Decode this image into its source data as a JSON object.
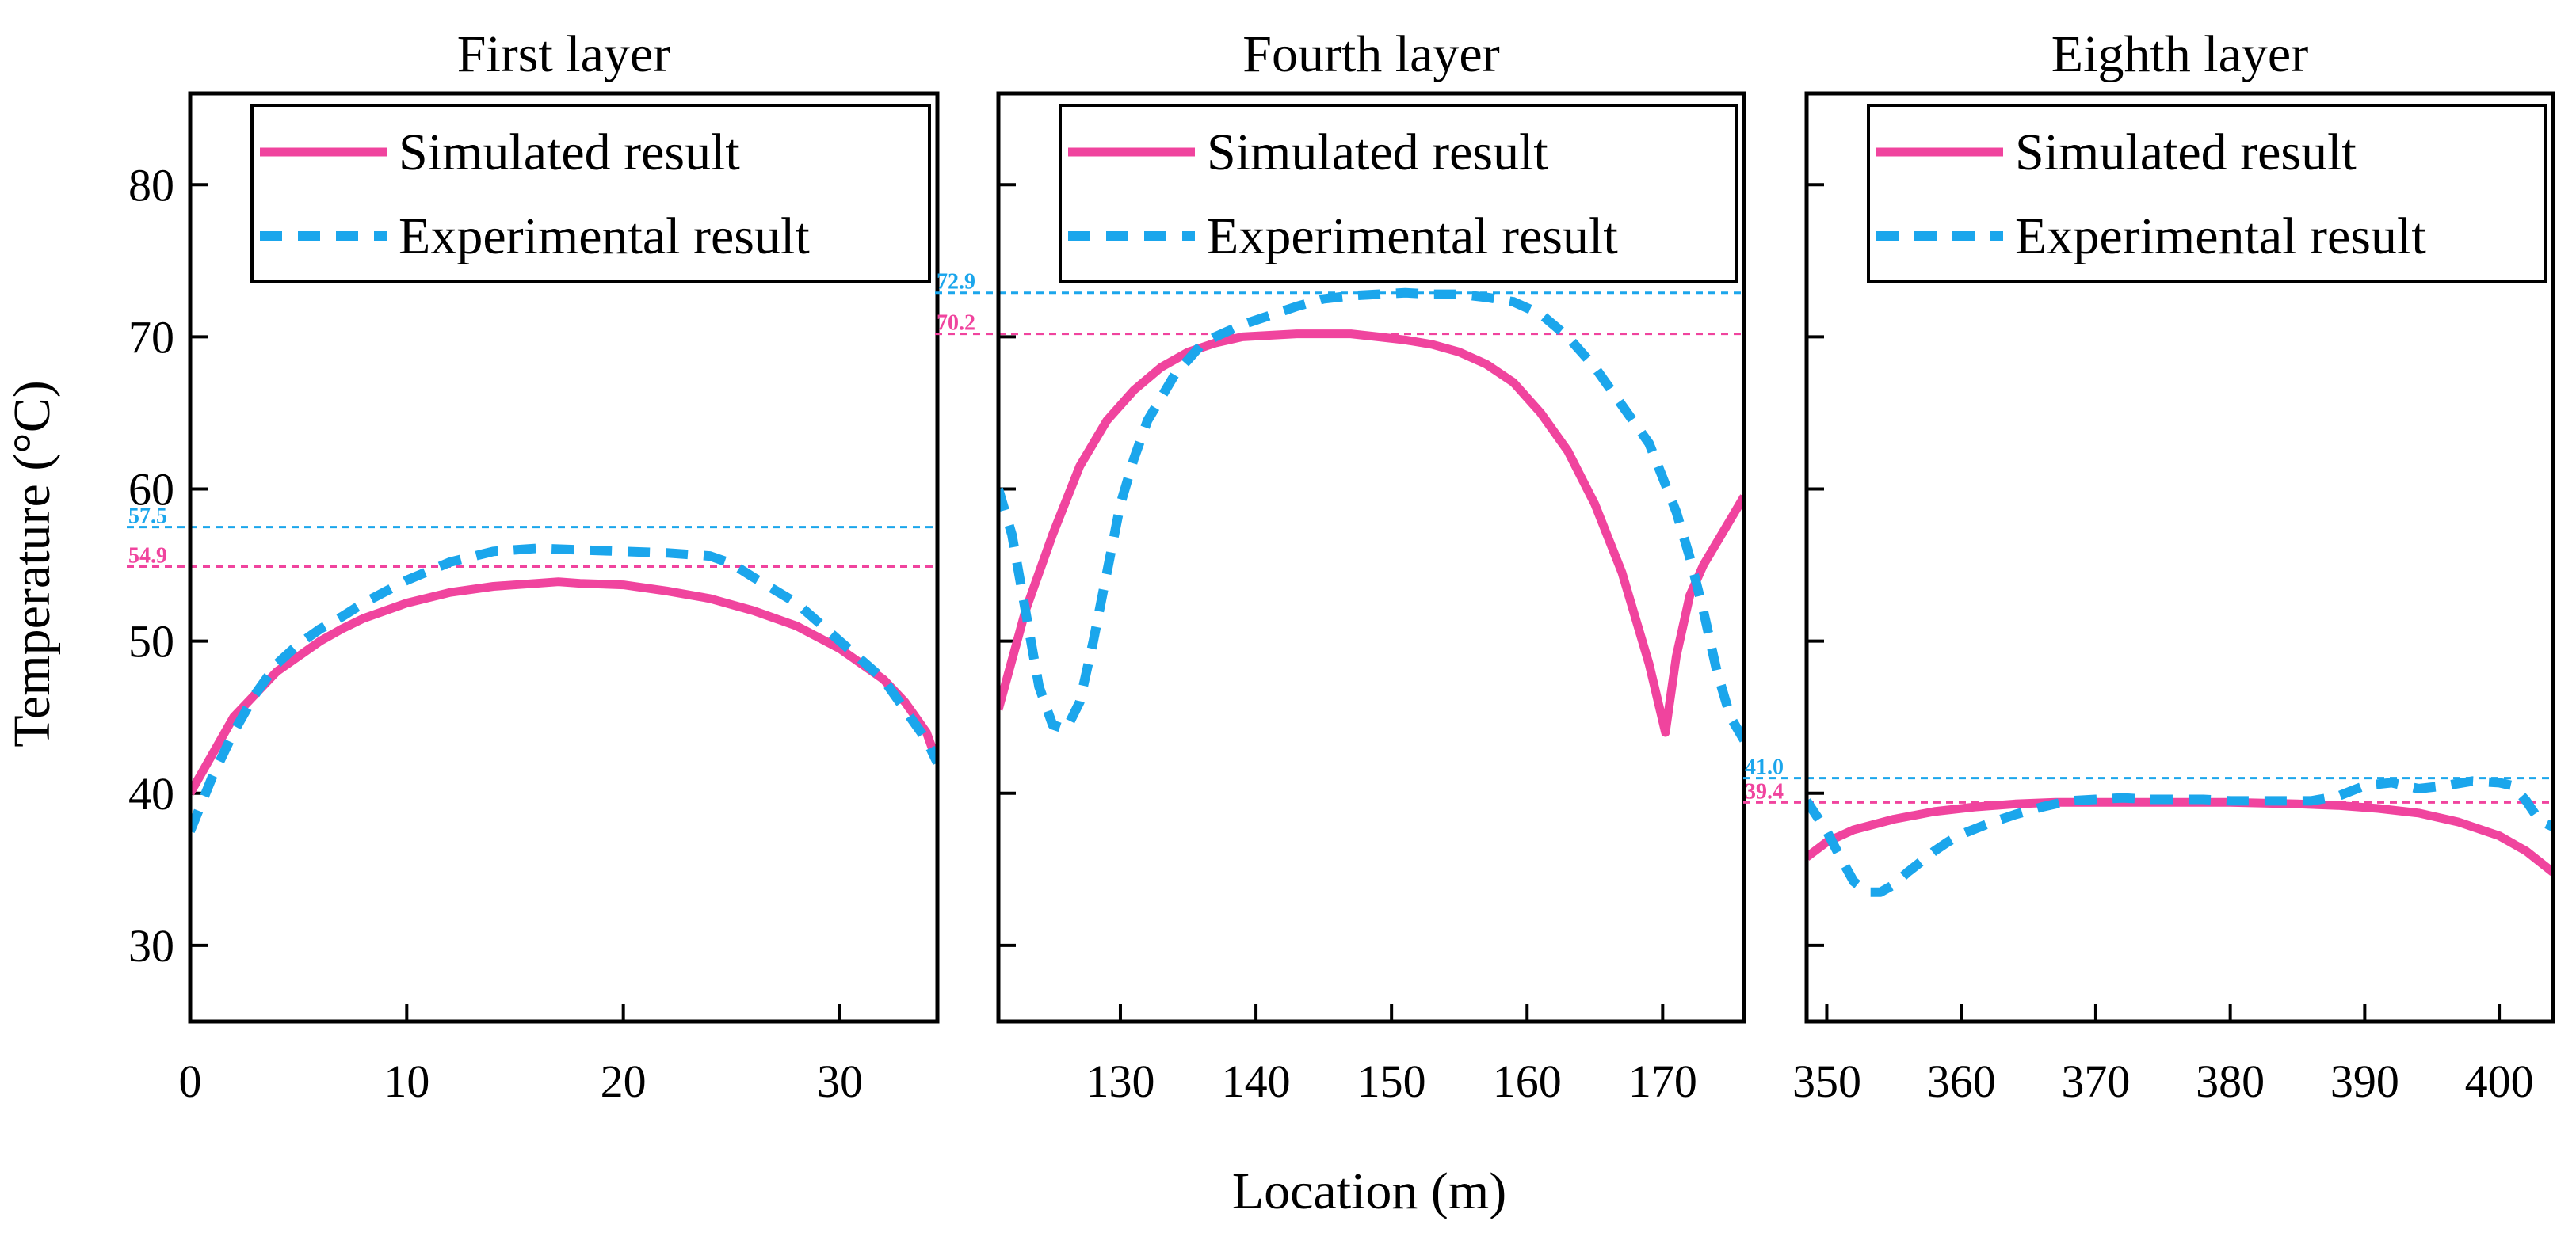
{
  "figure": {
    "ylabel": "Temperature (°C)",
    "xlabel": "Location (m)",
    "legend": {
      "simulated": "Simulated result",
      "experimental": "Experimental result",
      "placement": "top"
    },
    "colors": {
      "simulated": "#F0449E",
      "experimental": "#1BA6EC",
      "axis": "#000000"
    }
  },
  "chart_data": [
    {
      "type": "line",
      "title": "First layer",
      "xlim": [
        0,
        34.5
      ],
      "ylim": [
        25,
        86
      ],
      "xticks": [
        "0",
        "10",
        "20",
        "30"
      ],
      "yticks": [
        "30",
        "40",
        "50",
        "60",
        "70",
        "80"
      ],
      "series": [
        {
          "name": "Simulated result",
          "x": [
            0,
            1,
            2,
            3,
            4,
            5,
            6,
            7,
            8,
            10,
            12,
            14,
            16,
            17,
            18,
            20,
            22,
            24,
            26,
            28,
            30,
            31,
            32,
            33,
            34,
            34.5
          ],
          "y": [
            40.0,
            42.5,
            45.0,
            46.5,
            48.0,
            49.0,
            50.0,
            50.8,
            51.5,
            52.5,
            53.2,
            53.6,
            53.8,
            53.9,
            53.8,
            53.7,
            53.3,
            52.8,
            52.0,
            51.0,
            49.5,
            48.5,
            47.5,
            46.0,
            44.0,
            42.0
          ]
        },
        {
          "name": "Experimental result",
          "x": [
            0,
            1,
            2,
            3,
            4,
            5,
            6,
            7,
            8,
            10,
            12,
            14,
            16,
            18,
            20,
            22,
            24,
            25,
            26,
            28,
            30,
            32,
            33,
            34,
            34.5
          ],
          "y": [
            37.5,
            41.0,
            44.0,
            46.5,
            48.5,
            49.8,
            50.8,
            51.6,
            52.5,
            54.0,
            55.2,
            55.9,
            56.1,
            56.0,
            55.9,
            55.8,
            55.6,
            55.1,
            54.2,
            52.5,
            50.0,
            47.5,
            45.5,
            43.5,
            42.0
          ]
        }
      ],
      "annotations": [
        {
          "value": 57.5,
          "label": "57.5",
          "series": "experimental"
        },
        {
          "value": 54.9,
          "label": "54.9",
          "series": "simulated"
        }
      ]
    },
    {
      "type": "line",
      "title": "Fourth layer",
      "xlim": [
        121,
        176
      ],
      "ylim": [
        25,
        86
      ],
      "xticks": [
        "130",
        "140",
        "150",
        "160",
        "170"
      ],
      "yticks": [],
      "series": [
        {
          "name": "Simulated result",
          "x": [
            121,
            123,
            125,
            127,
            129,
            131,
            133,
            135,
            137,
            139,
            141,
            143,
            145,
            147,
            149,
            151,
            153,
            155,
            157,
            159,
            161,
            163,
            165,
            167,
            169,
            170.2,
            171,
            172,
            173,
            174,
            175,
            176
          ],
          "y": [
            45.5,
            52.0,
            57.0,
            61.5,
            64.5,
            66.5,
            68.0,
            69.0,
            69.6,
            70.0,
            70.1,
            70.2,
            70.2,
            70.2,
            70.0,
            69.8,
            69.5,
            69.0,
            68.2,
            67.0,
            65.0,
            62.5,
            59.0,
            54.5,
            48.5,
            44.0,
            49.0,
            53.0,
            55.0,
            56.5,
            58.0,
            59.5
          ]
        },
        {
          "name": "Experimental result",
          "x": [
            121,
            122,
            123,
            124,
            125,
            126,
            127,
            128,
            129,
            130,
            131,
            132,
            133,
            134,
            135,
            136,
            137,
            139,
            141,
            143,
            145,
            147,
            149,
            151,
            153,
            155,
            157,
            159,
            161,
            163,
            165,
            167,
            169,
            171,
            172,
            173,
            174,
            175,
            176
          ],
          "y": [
            60.0,
            57.0,
            52.0,
            47.0,
            44.5,
            44.2,
            46.0,
            50.0,
            54.5,
            59.0,
            62.0,
            64.5,
            66.0,
            67.5,
            68.5,
            69.5,
            70.0,
            70.8,
            71.4,
            72.0,
            72.5,
            72.7,
            72.8,
            72.9,
            72.8,
            72.8,
            72.6,
            72.3,
            71.5,
            70.0,
            68.0,
            65.5,
            63.0,
            58.5,
            55.5,
            52.0,
            48.0,
            45.0,
            43.5
          ]
        }
      ],
      "annotations": [
        {
          "value": 72.9,
          "label": "72.9",
          "series": "experimental"
        },
        {
          "value": 70.2,
          "label": "70.2",
          "series": "simulated"
        }
      ]
    },
    {
      "type": "line",
      "title": "Eighth layer",
      "xlim": [
        348.5,
        404
      ],
      "ylim": [
        25,
        86
      ],
      "xticks": [
        "350",
        "360",
        "370",
        "380",
        "390",
        "400"
      ],
      "yticks": [],
      "series": [
        {
          "name": "Simulated result",
          "x": [
            348.5,
            350,
            352,
            355,
            358,
            361,
            364,
            367,
            370,
            375,
            380,
            385,
            388,
            391,
            394,
            397,
            400,
            402,
            404
          ],
          "y": [
            35.8,
            36.8,
            37.6,
            38.3,
            38.8,
            39.1,
            39.3,
            39.4,
            39.4,
            39.4,
            39.4,
            39.3,
            39.2,
            39.0,
            38.7,
            38.1,
            37.2,
            36.2,
            34.8
          ]
        },
        {
          "name": "Experimental result",
          "x": [
            348.5,
            350,
            351,
            352,
            353,
            354,
            355,
            356,
            357,
            358,
            359,
            360,
            362,
            364,
            366,
            368,
            370,
            372,
            374,
            376,
            378,
            380,
            383,
            386,
            388,
            390,
            392,
            394,
            396,
            398,
            400,
            401,
            402,
            403,
            404
          ],
          "y": [
            39.5,
            37.5,
            35.8,
            34.2,
            33.5,
            33.5,
            34.0,
            34.8,
            35.5,
            36.2,
            36.8,
            37.3,
            38.0,
            38.6,
            39.1,
            39.5,
            39.6,
            39.7,
            39.6,
            39.6,
            39.6,
            39.5,
            39.5,
            39.5,
            39.8,
            40.5,
            40.7,
            40.3,
            40.5,
            40.8,
            40.7,
            40.5,
            39.5,
            38.2,
            37.8
          ]
        }
      ],
      "annotations": [
        {
          "value": 41.0,
          "label": "41.0",
          "series": "experimental"
        },
        {
          "value": 39.4,
          "label": "39.4",
          "series": "simulated"
        }
      ]
    }
  ]
}
